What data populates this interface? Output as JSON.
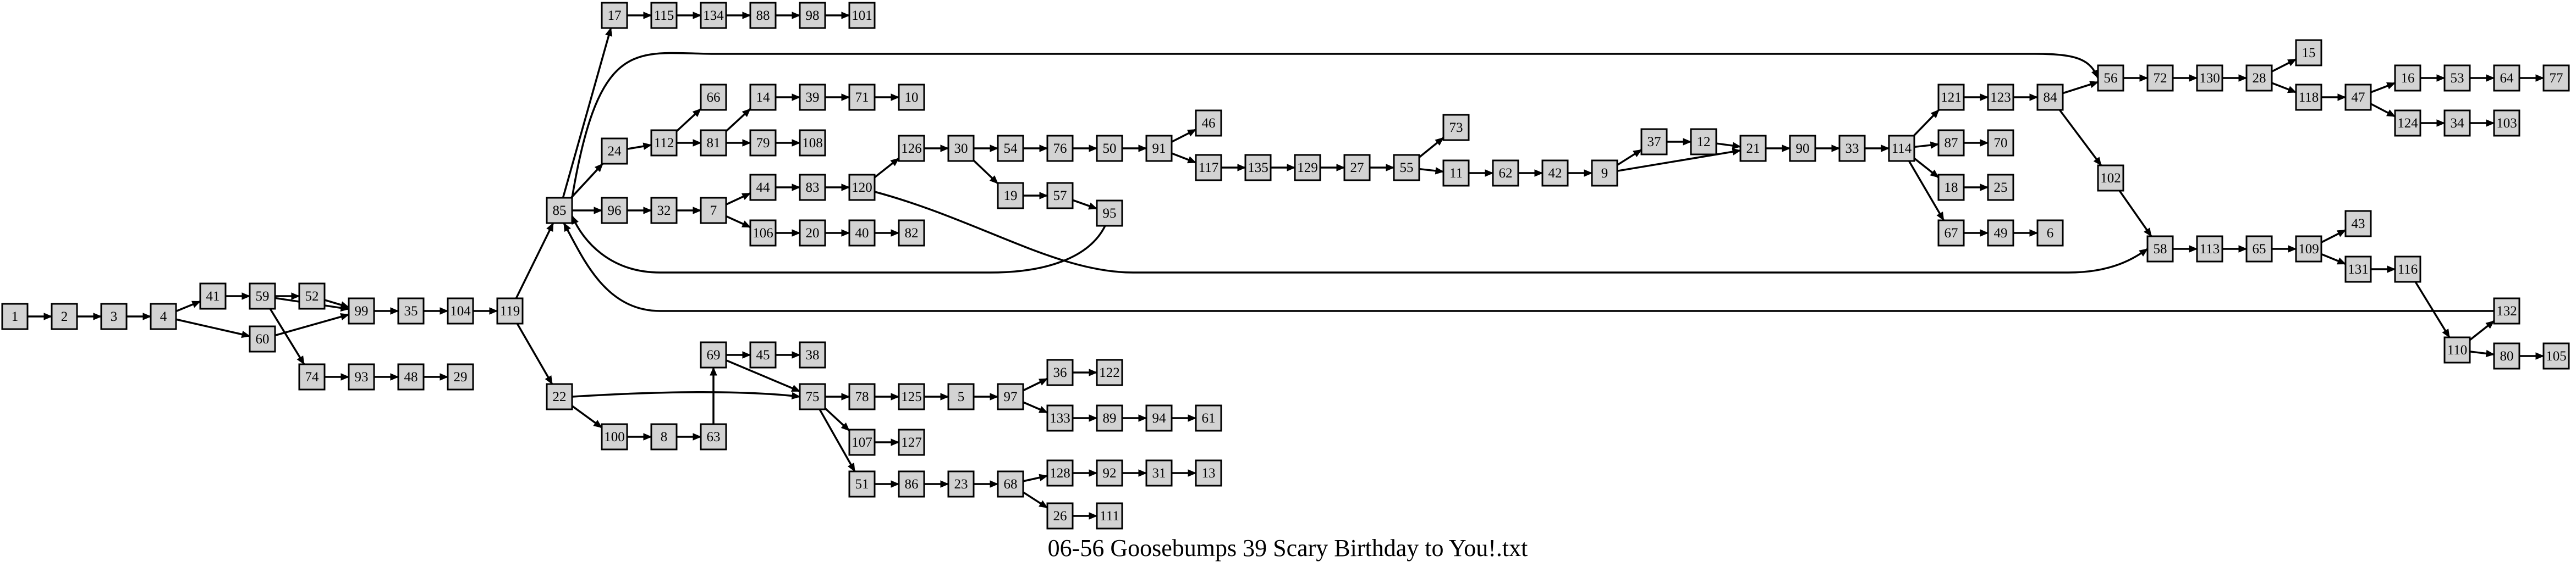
{
  "title": "06-56 Goosebumps 39 Scary Birthday to You!.txt",
  "colors": {
    "node_fill": "#d3d3d3",
    "stroke": "#000000",
    "background": "#ffffff"
  },
  "nodes": [
    "1",
    "2",
    "3",
    "4",
    "41",
    "60",
    "59",
    "52",
    "74",
    "99",
    "93",
    "48",
    "29",
    "35",
    "104",
    "119",
    "85",
    "22",
    "17",
    "115",
    "134",
    "88",
    "98",
    "101",
    "24",
    "96",
    "112",
    "66",
    "81",
    "14",
    "39",
    "71",
    "10",
    "79",
    "108",
    "32",
    "7",
    "44",
    "83",
    "120",
    "106",
    "20",
    "40",
    "82",
    "126",
    "30",
    "54",
    "76",
    "50",
    "91",
    "46",
    "117",
    "135",
    "129",
    "27",
    "55",
    "73",
    "11",
    "62",
    "42",
    "9",
    "37",
    "12",
    "21",
    "90",
    "33",
    "114",
    "121",
    "123",
    "84",
    "56",
    "72",
    "130",
    "28",
    "15",
    "118",
    "47",
    "16",
    "53",
    "64",
    "77",
    "124",
    "34",
    "103",
    "87",
    "70",
    "18",
    "25",
    "67",
    "49",
    "6",
    "102",
    "58",
    "113",
    "65",
    "109",
    "43",
    "131",
    "116",
    "110",
    "132",
    "80",
    "105",
    "19",
    "57",
    "95",
    "100",
    "8",
    "63",
    "69",
    "45",
    "38",
    "75",
    "78",
    "125",
    "5",
    "97",
    "36",
    "122",
    "133",
    "89",
    "94",
    "61",
    "107",
    "127",
    "51",
    "86",
    "23",
    "68",
    "128",
    "92",
    "31",
    "13",
    "26",
    "111"
  ],
  "edges": [
    [
      "1",
      "2"
    ],
    [
      "2",
      "3"
    ],
    [
      "3",
      "4"
    ],
    [
      "4",
      "41"
    ],
    [
      "4",
      "60"
    ],
    [
      "41",
      "59"
    ],
    [
      "59",
      "52"
    ],
    [
      "59",
      "99"
    ],
    [
      "59",
      "74"
    ],
    [
      "52",
      "99"
    ],
    [
      "60",
      "99"
    ],
    [
      "74",
      "93"
    ],
    [
      "93",
      "48"
    ],
    [
      "48",
      "29"
    ],
    [
      "99",
      "35"
    ],
    [
      "35",
      "104"
    ],
    [
      "104",
      "119"
    ],
    [
      "119",
      "85"
    ],
    [
      "119",
      "22"
    ],
    [
      "85",
      "17"
    ],
    [
      "17",
      "115"
    ],
    [
      "115",
      "134"
    ],
    [
      "134",
      "88"
    ],
    [
      "88",
      "98"
    ],
    [
      "98",
      "101"
    ],
    [
      "85",
      "24"
    ],
    [
      "85",
      "96"
    ],
    [
      "85",
      "56"
    ],
    [
      "24",
      "112"
    ],
    [
      "112",
      "66"
    ],
    [
      "112",
      "81"
    ],
    [
      "81",
      "14"
    ],
    [
      "81",
      "79"
    ],
    [
      "14",
      "39"
    ],
    [
      "39",
      "71"
    ],
    [
      "71",
      "10"
    ],
    [
      "79",
      "108"
    ],
    [
      "96",
      "32"
    ],
    [
      "32",
      "7"
    ],
    [
      "7",
      "44"
    ],
    [
      "7",
      "106"
    ],
    [
      "44",
      "83"
    ],
    [
      "83",
      "120"
    ],
    [
      "106",
      "20"
    ],
    [
      "20",
      "40"
    ],
    [
      "40",
      "82"
    ],
    [
      "120",
      "126"
    ],
    [
      "120",
      "58"
    ],
    [
      "126",
      "30"
    ],
    [
      "30",
      "54"
    ],
    [
      "30",
      "19"
    ],
    [
      "54",
      "76"
    ],
    [
      "76",
      "50"
    ],
    [
      "50",
      "91"
    ],
    [
      "91",
      "46"
    ],
    [
      "91",
      "117"
    ],
    [
      "117",
      "135"
    ],
    [
      "135",
      "129"
    ],
    [
      "129",
      "27"
    ],
    [
      "27",
      "55"
    ],
    [
      "55",
      "73"
    ],
    [
      "55",
      "11"
    ],
    [
      "11",
      "62"
    ],
    [
      "62",
      "42"
    ],
    [
      "42",
      "9"
    ],
    [
      "9",
      "37"
    ],
    [
      "9",
      "21"
    ],
    [
      "37",
      "12"
    ],
    [
      "12",
      "21"
    ],
    [
      "21",
      "90"
    ],
    [
      "90",
      "33"
    ],
    [
      "33",
      "114"
    ],
    [
      "114",
      "121"
    ],
    [
      "114",
      "87"
    ],
    [
      "114",
      "18"
    ],
    [
      "114",
      "67"
    ],
    [
      "121",
      "123"
    ],
    [
      "123",
      "84"
    ],
    [
      "84",
      "56"
    ],
    [
      "84",
      "102"
    ],
    [
      "87",
      "70"
    ],
    [
      "18",
      "25"
    ],
    [
      "67",
      "49"
    ],
    [
      "49",
      "6"
    ],
    [
      "56",
      "72"
    ],
    [
      "72",
      "130"
    ],
    [
      "130",
      "28"
    ],
    [
      "28",
      "15"
    ],
    [
      "28",
      "118"
    ],
    [
      "118",
      "47"
    ],
    [
      "47",
      "16"
    ],
    [
      "47",
      "124"
    ],
    [
      "16",
      "53"
    ],
    [
      "53",
      "64"
    ],
    [
      "64",
      "77"
    ],
    [
      "124",
      "34"
    ],
    [
      "34",
      "103"
    ],
    [
      "102",
      "58"
    ],
    [
      "58",
      "113"
    ],
    [
      "113",
      "65"
    ],
    [
      "65",
      "109"
    ],
    [
      "109",
      "43"
    ],
    [
      "109",
      "131"
    ],
    [
      "131",
      "116"
    ],
    [
      "116",
      "110"
    ],
    [
      "110",
      "132"
    ],
    [
      "110",
      "80"
    ],
    [
      "80",
      "105"
    ],
    [
      "132",
      "85"
    ],
    [
      "19",
      "57"
    ],
    [
      "57",
      "95"
    ],
    [
      "95",
      "85"
    ],
    [
      "22",
      "100"
    ],
    [
      "22",
      "75"
    ],
    [
      "100",
      "8"
    ],
    [
      "8",
      "63"
    ],
    [
      "63",
      "69"
    ],
    [
      "69",
      "45"
    ],
    [
      "69",
      "75"
    ],
    [
      "45",
      "38"
    ],
    [
      "75",
      "78"
    ],
    [
      "75",
      "107"
    ],
    [
      "75",
      "51"
    ],
    [
      "78",
      "125"
    ],
    [
      "125",
      "5"
    ],
    [
      "5",
      "97"
    ],
    [
      "97",
      "36"
    ],
    [
      "97",
      "133"
    ],
    [
      "36",
      "122"
    ],
    [
      "133",
      "89"
    ],
    [
      "89",
      "94"
    ],
    [
      "94",
      "61"
    ],
    [
      "107",
      "127"
    ],
    [
      "51",
      "86"
    ],
    [
      "86",
      "23"
    ],
    [
      "23",
      "68"
    ],
    [
      "68",
      "128"
    ],
    [
      "68",
      "26"
    ],
    [
      "128",
      "92"
    ],
    [
      "92",
      "31"
    ],
    [
      "31",
      "13"
    ],
    [
      "26",
      "111"
    ]
  ]
}
